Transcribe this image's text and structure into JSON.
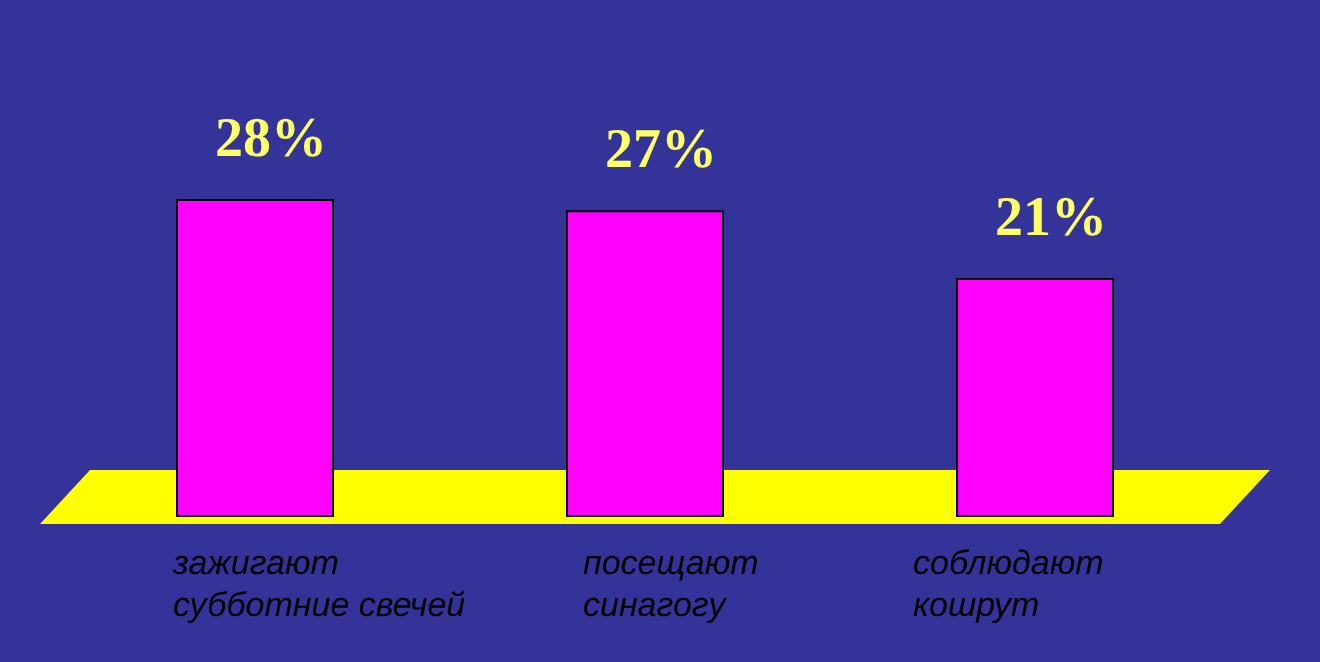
{
  "chart_data": {
    "type": "bar",
    "categories": [
      "зажигают\nсубботние свечей",
      "посещают\nсинагогу",
      "соблюдают\nкошрут"
    ],
    "values": [
      28,
      27,
      21
    ],
    "value_labels": [
      "28%",
      "27%",
      "21%"
    ],
    "color": "#ff00ff"
  }
}
